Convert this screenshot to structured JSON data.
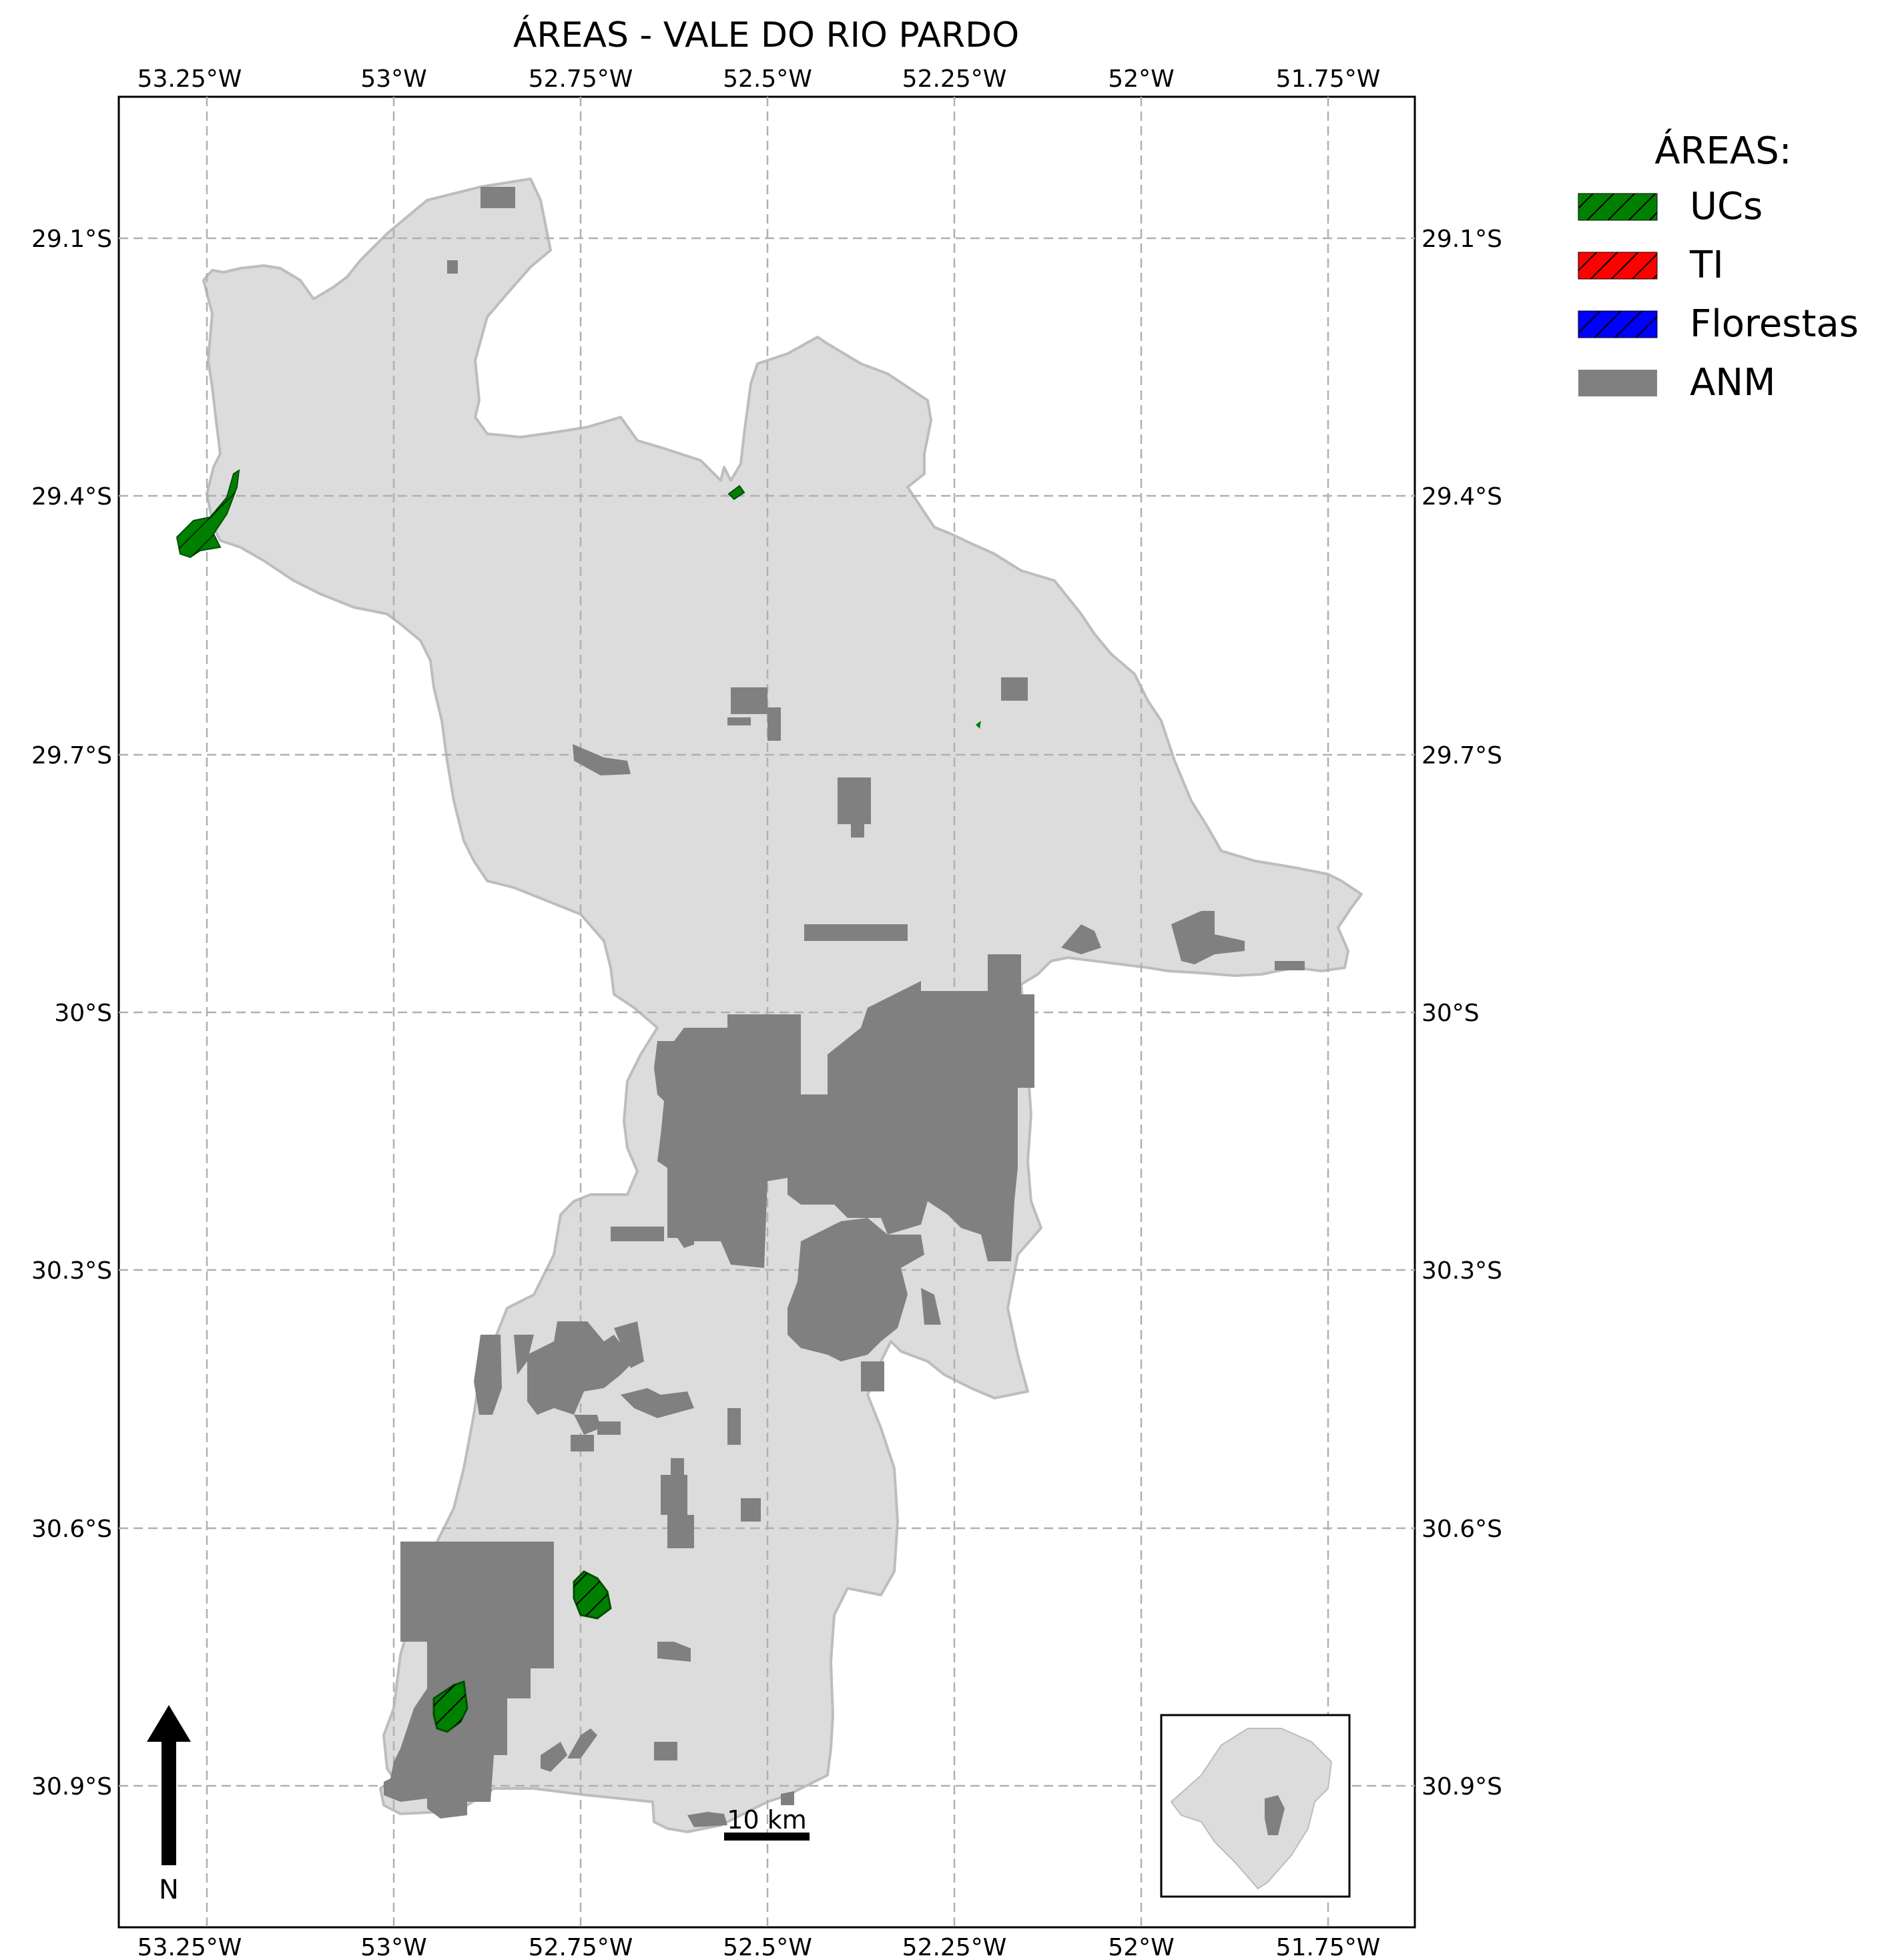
{
  "title": "ÁREAS - VALE DO RIO PARDO",
  "axes": {
    "x_ticks": [
      "53.25°W",
      "53°W",
      "52.75°W",
      "52.5°W",
      "52.25°W",
      "52°W",
      "51.75°W"
    ],
    "y_ticks": [
      "29.1°S",
      "29.4°S",
      "29.7°S",
      "30°S",
      "30.3°S",
      "30.6°S",
      "30.9°S"
    ]
  },
  "legend": {
    "title": "ÁREAS:",
    "items": [
      {
        "label": "UCs",
        "color": "#008000",
        "hatch": true
      },
      {
        "label": "TI",
        "color": "#ff0000",
        "hatch": true
      },
      {
        "label": "Florestas",
        "color": "#0000ff",
        "hatch": true
      },
      {
        "label": "ANM",
        "color": "#808080",
        "hatch": false
      }
    ]
  },
  "colors": {
    "region_fill": "#dcdcdc",
    "region_stroke": "#bdbdbd",
    "anm": "#808080",
    "uc": "#008000",
    "grid": "#b0b0b0"
  },
  "scale_bar": {
    "label": "10 km"
  },
  "north_arrow": {
    "label": "N"
  },
  "inset": {
    "name": "Rio Grande do Sul locator"
  }
}
